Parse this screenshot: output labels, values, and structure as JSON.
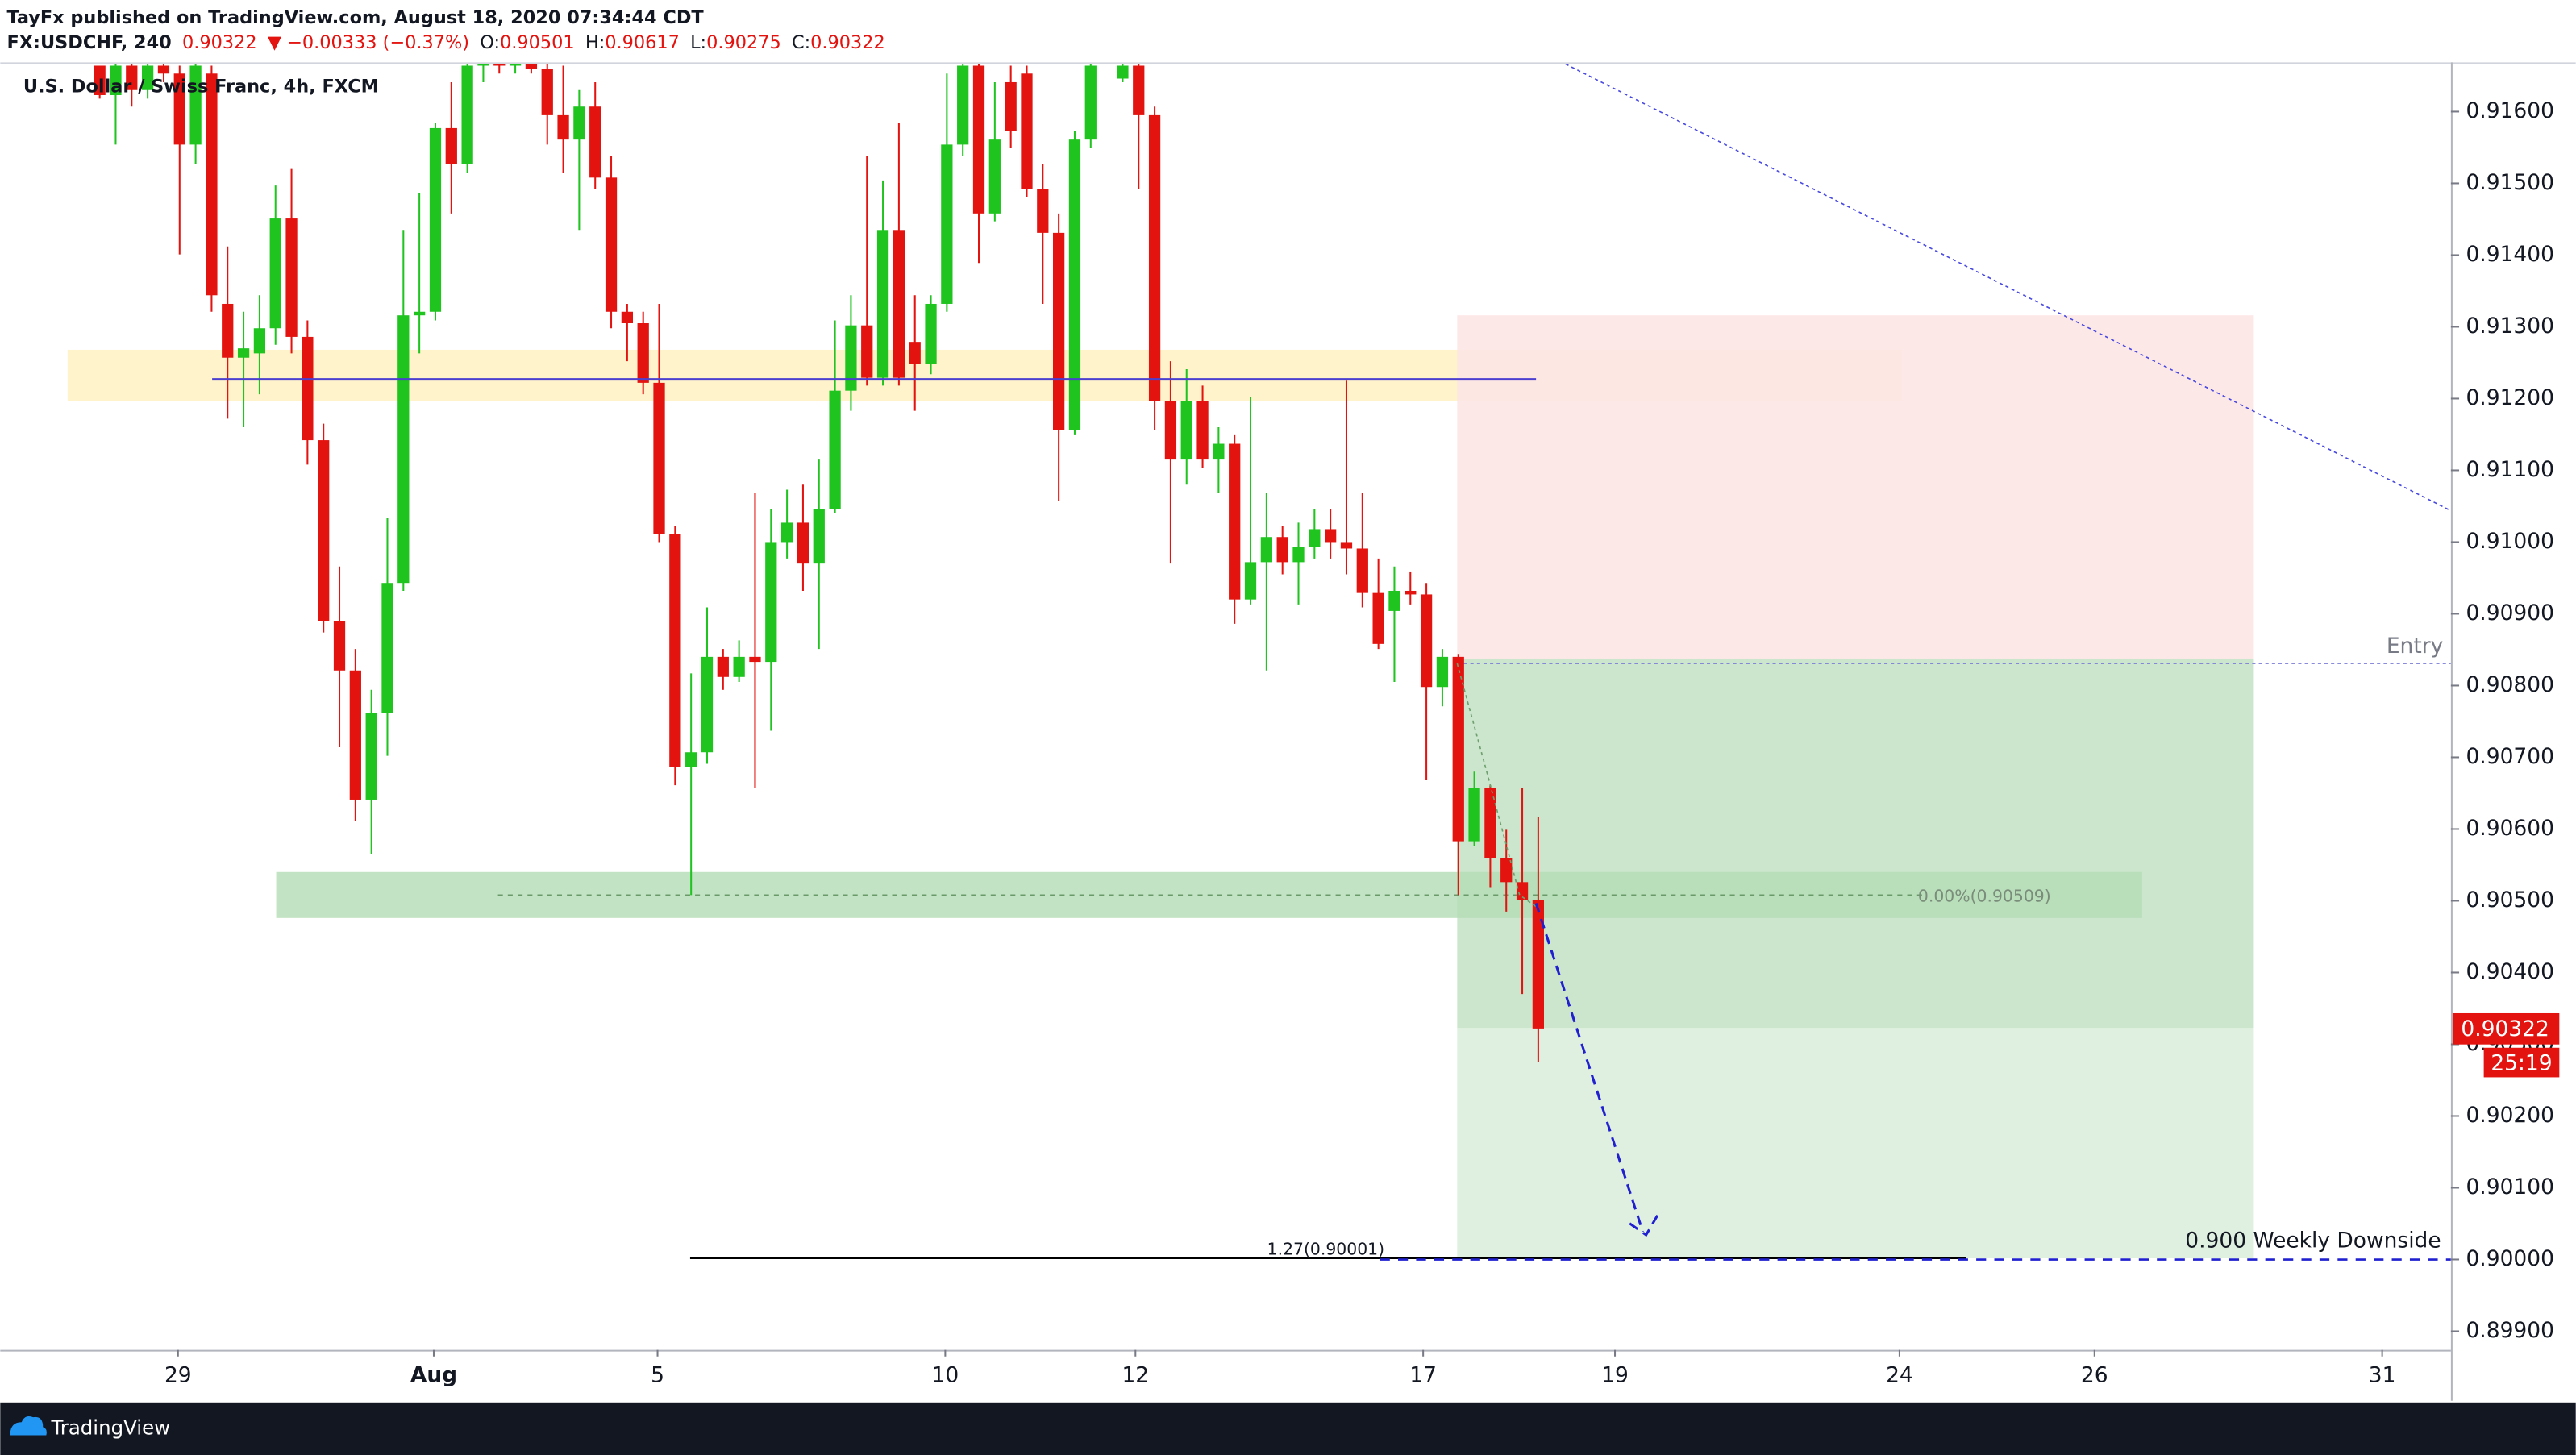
{
  "header": {
    "author_line": "TayFx published on TradingView.com, August 18, 2020 07:34:44 CDT",
    "symbol": "FX:USDCHF, 240",
    "change": "▼ −0.00333 (−0.37%)",
    "ohlc_labels": [
      "O:",
      "H:",
      "L:",
      "C:"
    ]
  },
  "chart_data": {
    "type": "candlestick",
    "title": "U.S. Dollar / Swiss Franc, 4h, FXCM",
    "x": [
      0,
      1,
      2,
      3,
      4,
      5,
      6,
      7,
      8,
      9,
      10,
      11,
      12,
      13,
      14,
      15,
      16,
      17,
      18,
      19,
      20,
      21,
      22,
      23,
      24,
      25,
      26,
      27,
      28,
      29,
      30,
      31,
      32,
      33,
      34,
      35,
      36,
      37,
      38,
      39,
      40,
      41,
      42,
      43,
      44,
      45,
      46,
      47,
      48,
      49,
      50,
      51,
      52,
      53,
      54,
      55,
      56,
      57,
      58,
      59,
      60,
      61,
      62,
      64,
      65,
      66,
      67,
      68,
      69,
      70,
      71,
      72,
      73,
      74,
      75,
      76,
      77,
      78,
      79,
      80,
      81,
      82,
      83,
      84,
      85,
      86,
      87,
      88,
      89,
      90
    ],
    "open": [
      0.91664,
      0.91623,
      0.91664,
      0.9163,
      0.91664,
      0.91653,
      0.91554,
      0.91653,
      0.91332,
      0.91257,
      0.91263,
      0.91298,
      0.91451,
      0.91286,
      0.91142,
      0.9089,
      0.90821,
      0.90641,
      0.90762,
      0.90943,
      0.91316,
      0.91321,
      0.91577,
      0.91527,
      0.91664,
      0.91676,
      0.91664,
      0.91676,
      0.9166,
      0.91595,
      0.91561,
      0.91607,
      0.91508,
      0.91321,
      0.91305,
      0.91222,
      0.91011,
      0.90686,
      0.90707,
      0.9084,
      0.90812,
      0.9084,
      0.90833,
      0.91,
      0.91027,
      0.9097,
      0.91046,
      0.91211,
      0.91302,
      0.91229,
      0.91435,
      0.91279,
      0.91248,
      0.91332,
      0.91554,
      0.91664,
      0.91458,
      0.91641,
      0.91653,
      0.91492,
      0.91431,
      0.91156,
      0.91561,
      0.91646,
      0.91664,
      0.91595,
      0.91197,
      0.91115,
      0.91197,
      0.91115,
      0.91137,
      0.9092,
      0.90972,
      0.91007,
      0.90972,
      0.90993,
      0.91018,
      0.91,
      0.90991,
      0.90929,
      0.90904,
      0.90932,
      0.90927,
      0.90798,
      0.9084,
      0.90583,
      0.90657,
      0.9056,
      0.90526,
      0.90501
    ],
    "high": [
      0.91664,
      0.91676,
      0.91687,
      0.91687,
      0.91687,
      0.91664,
      0.91687,
      0.91664,
      0.91412,
      0.91321,
      0.91344,
      0.91497,
      0.9152,
      0.91309,
      0.91165,
      0.90966,
      0.90851,
      0.90794,
      0.91034,
      0.91435,
      0.91486,
      0.91584,
      0.91641,
      0.91687,
      0.91687,
      0.91699,
      0.91699,
      0.91687,
      0.91676,
      0.91664,
      0.9163,
      0.91641,
      0.91538,
      0.91332,
      0.91321,
      0.91332,
      0.91023,
      0.90817,
      0.90909,
      0.90851,
      0.90863,
      0.91069,
      0.91046,
      0.91073,
      0.9108,
      0.91115,
      0.91309,
      0.91344,
      0.91538,
      0.91504,
      0.91584,
      0.91344,
      0.91344,
      0.91653,
      0.91676,
      0.91676,
      0.91641,
      0.91664,
      0.91664,
      0.91527,
      0.91458,
      0.91573,
      0.91676,
      0.91687,
      0.91676,
      0.91607,
      0.91252,
      0.91241,
      0.91218,
      0.9116,
      0.91149,
      0.91202,
      0.91069,
      0.91023,
      0.91027,
      0.91046,
      0.91046,
      0.91225,
      0.91069,
      0.90977,
      0.90966,
      0.90959,
      0.90943,
      0.90851,
      0.90844,
      0.9068,
      0.90661,
      0.90599,
      0.90657,
      0.90617
    ],
    "low": [
      0.91618,
      0.91554,
      0.91607,
      0.91618,
      0.91641,
      0.91401,
      0.91527,
      0.91321,
      0.91172,
      0.9116,
      0.91206,
      0.91275,
      0.91263,
      0.91108,
      0.90874,
      0.90714,
      0.90611,
      0.90565,
      0.90702,
      0.90932,
      0.91263,
      0.91309,
      0.91458,
      0.91515,
      0.91641,
      0.91653,
      0.91653,
      0.91653,
      0.91554,
      0.91515,
      0.91435,
      0.91492,
      0.91298,
      0.91252,
      0.91206,
      0.91,
      0.90661,
      0.90508,
      0.90691,
      0.90794,
      0.90805,
      0.90657,
      0.90737,
      0.90977,
      0.90932,
      0.90851,
      0.91041,
      0.91183,
      0.91218,
      0.91218,
      0.91218,
      0.91183,
      0.91234,
      0.91321,
      0.91538,
      0.91389,
      0.91447,
      0.9155,
      0.91481,
      0.91332,
      0.91057,
      0.91149,
      0.9155,
      0.91641,
      0.91492,
      0.91156,
      0.9097,
      0.9108,
      0.91103,
      0.91069,
      0.90886,
      0.90913,
      0.90821,
      0.90955,
      0.90913,
      0.90977,
      0.90977,
      0.90955,
      0.90909,
      0.90851,
      0.90805,
      0.90913,
      0.90668,
      0.90771,
      0.90508,
      0.90576,
      0.90519,
      0.90485,
      0.9037,
      0.90275
    ],
    "close": [
      0.91623,
      0.91664,
      0.9163,
      0.91664,
      0.91653,
      0.91554,
      0.91664,
      0.91344,
      0.91257,
      0.9127,
      0.91298,
      0.91451,
      0.91286,
      0.91142,
      0.9089,
      0.90821,
      0.90641,
      0.90762,
      0.90943,
      0.91316,
      0.91321,
      0.91577,
      0.91527,
      0.91664,
      0.91676,
      0.91664,
      0.91676,
      0.9166,
      0.91595,
      0.91561,
      0.91607,
      0.91508,
      0.91321,
      0.91305,
      0.91222,
      0.91011,
      0.90686,
      0.90707,
      0.9084,
      0.90812,
      0.9084,
      0.90833,
      0.91,
      0.91027,
      0.9097,
      0.91046,
      0.91211,
      0.91302,
      0.91229,
      0.91435,
      0.91229,
      0.91248,
      0.91332,
      0.91554,
      0.91664,
      0.91458,
      0.91561,
      0.91573,
      0.91492,
      0.91431,
      0.91156,
      0.91561,
      0.91664,
      0.91664,
      0.91595,
      0.91197,
      0.91115,
      0.91197,
      0.91115,
      0.91137,
      0.9092,
      0.90972,
      0.91007,
      0.90972,
      0.90993,
      0.91018,
      0.91,
      0.90991,
      0.90929,
      0.90858,
      0.90932,
      0.90927,
      0.90798,
      0.9084,
      0.90583,
      0.90657,
      0.9056,
      0.90526,
      0.90501,
      0.90322
    ],
    "up_color": "#1fc41f",
    "down_color": "#e3130f",
    "xlim": [
      -5.4,
      147.1
    ],
    "xticks": [
      {
        "value": 4.9,
        "label": "29"
      },
      {
        "value": 20.9,
        "label": "Aug"
      },
      {
        "value": 34.9,
        "label": "5"
      },
      {
        "value": 52.9,
        "label": "10"
      },
      {
        "value": 64.8,
        "label": "12"
      },
      {
        "value": 82.8,
        "label": "17"
      },
      {
        "value": 94.8,
        "label": "19"
      },
      {
        "value": 112.6,
        "label": "24"
      },
      {
        "value": 124.8,
        "label": "26"
      },
      {
        "value": 142.8,
        "label": "31"
      }
    ],
    "ylim": [
      0.89874,
      0.91664
    ],
    "yticks": [
      {
        "value": 0.899,
        "label": "0.89900"
      },
      {
        "value": 0.9,
        "label": "0.90000"
      },
      {
        "value": 0.901,
        "label": "0.90100"
      },
      {
        "value": 0.902,
        "label": "0.90200"
      },
      {
        "value": 0.903,
        "label": "0.90300"
      },
      {
        "value": 0.904,
        "label": "0.90400"
      },
      {
        "value": 0.905,
        "label": "0.90500"
      },
      {
        "value": 0.906,
        "label": "0.90600"
      },
      {
        "value": 0.907,
        "label": "0.90700"
      },
      {
        "value": 0.908,
        "label": "0.90800"
      },
      {
        "value": 0.909,
        "label": "0.90900"
      },
      {
        "value": 0.91,
        "label": "0.91000"
      },
      {
        "value": 0.911,
        "label": "0.91100"
      },
      {
        "value": 0.912,
        "label": "0.91200"
      },
      {
        "value": 0.913,
        "label": "0.91300"
      },
      {
        "value": 0.914,
        "label": "0.91400"
      },
      {
        "value": 0.915,
        "label": "0.91500"
      },
      {
        "value": 0.916,
        "label": "0.91600"
      }
    ],
    "annotations": {
      "entry": "Entry",
      "fib_zero": "0.00%(0.90509)",
      "fib_ext": "1.27(0.90001)",
      "target": "0.900 Weekly Downside"
    },
    "countdown": "25:19"
  },
  "footer": {
    "brand": "TradingView"
  }
}
